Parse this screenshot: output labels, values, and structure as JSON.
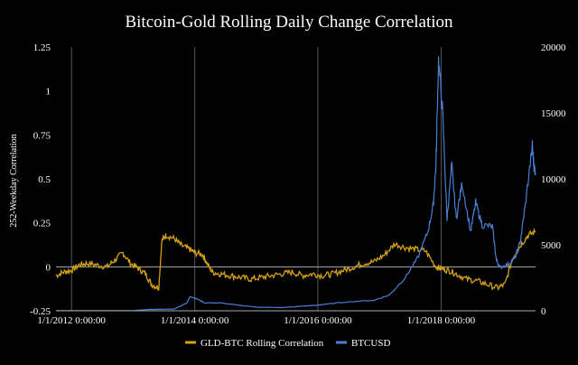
{
  "chart_data": {
    "type": "line",
    "title": "Bitcoin-Gold Rolling Daily Change Correlation",
    "ylabel_left": "252-Weekday Correlation",
    "ylabel_right": "",
    "xlabel": "",
    "x_range": [
      "2011-10-01",
      "2019-07-15"
    ],
    "ylim_left": [
      -0.25,
      1.25
    ],
    "ylim_right": [
      0,
      20000
    ],
    "yticks_left": [
      "-0.25",
      "0",
      "0.25",
      "0.5",
      "0.75",
      "1",
      "1.25"
    ],
    "yticks_right": [
      "0",
      "5000",
      "10000",
      "15000",
      "20000"
    ],
    "xticks": [
      {
        "date": "2012-01-01",
        "label": "1/1/2012 0:00:00"
      },
      {
        "date": "2014-01-01",
        "label": "1/1/2014 0:00:00"
      },
      {
        "date": "2016-01-01",
        "label": "1/1/2016 0:00:00"
      },
      {
        "date": "2018-01-01",
        "label": "1/1/2018 0:00:00"
      }
    ],
    "grid": "vertical",
    "legend_position": "bottom",
    "series": [
      {
        "name": "GLD-BTC Rolling Correlation",
        "color": "#d4a017",
        "axis": "left",
        "points": [
          [
            "2011-10-01",
            -0.05
          ],
          [
            "2011-11-15",
            -0.03
          ],
          [
            "2012-01-01",
            -0.02
          ],
          [
            "2012-02-15",
            0.01
          ],
          [
            "2012-04-01",
            0.02
          ],
          [
            "2012-06-01",
            0.01
          ],
          [
            "2012-08-01",
            0.0
          ],
          [
            "2012-09-15",
            0.04
          ],
          [
            "2012-11-01",
            0.08
          ],
          [
            "2012-12-15",
            0.02
          ],
          [
            "2013-02-01",
            -0.01
          ],
          [
            "2013-03-15",
            -0.04
          ],
          [
            "2013-04-20",
            -0.1
          ],
          [
            "2013-06-01",
            -0.12
          ],
          [
            "2013-06-20",
            0.15
          ],
          [
            "2013-07-15",
            0.18
          ],
          [
            "2013-09-01",
            0.16
          ],
          [
            "2013-10-15",
            0.12
          ],
          [
            "2013-12-01",
            0.1
          ],
          [
            "2014-01-01",
            0.08
          ],
          [
            "2014-02-15",
            0.07
          ],
          [
            "2014-03-15",
            0.02
          ],
          [
            "2014-04-15",
            -0.03
          ],
          [
            "2014-06-01",
            -0.04
          ],
          [
            "2014-08-01",
            -0.05
          ],
          [
            "2014-10-01",
            -0.06
          ],
          [
            "2014-12-01",
            -0.07
          ],
          [
            "2015-02-01",
            -0.06
          ],
          [
            "2015-04-01",
            -0.05
          ],
          [
            "2015-06-01",
            -0.04
          ],
          [
            "2015-08-01",
            -0.03
          ],
          [
            "2015-10-01",
            -0.05
          ],
          [
            "2015-12-01",
            -0.04
          ],
          [
            "2016-02-01",
            -0.05
          ],
          [
            "2016-04-01",
            -0.04
          ],
          [
            "2016-06-01",
            -0.02
          ],
          [
            "2016-08-01",
            0.0
          ],
          [
            "2016-10-01",
            0.02
          ],
          [
            "2016-12-01",
            0.03
          ],
          [
            "2017-02-01",
            0.07
          ],
          [
            "2017-04-01",
            0.13
          ],
          [
            "2017-06-01",
            0.11
          ],
          [
            "2017-08-01",
            0.1
          ],
          [
            "2017-10-01",
            0.09
          ],
          [
            "2017-12-01",
            0.0
          ],
          [
            "2018-01-01",
            -0.01
          ],
          [
            "2018-02-15",
            -0.02
          ],
          [
            "2018-04-01",
            -0.04
          ],
          [
            "2018-06-01",
            -0.07
          ],
          [
            "2018-08-01",
            -0.08
          ],
          [
            "2018-10-01",
            -0.1
          ],
          [
            "2018-12-01",
            -0.12
          ],
          [
            "2019-01-15",
            -0.1
          ],
          [
            "2019-03-01",
            0.05
          ],
          [
            "2019-04-15",
            0.12
          ],
          [
            "2019-06-01",
            0.18
          ],
          [
            "2019-07-15",
            0.2
          ]
        ]
      },
      {
        "name": "BTCUSD",
        "color": "#4a7fd4",
        "axis": "right",
        "points": [
          [
            "2011-10-01",
            5
          ],
          [
            "2012-06-01",
            8
          ],
          [
            "2013-01-01",
            15
          ],
          [
            "2013-04-01",
            100
          ],
          [
            "2013-09-01",
            130
          ],
          [
            "2013-11-15",
            600
          ],
          [
            "2013-12-05",
            1100
          ],
          [
            "2014-01-15",
            900
          ],
          [
            "2014-03-01",
            600
          ],
          [
            "2014-06-01",
            600
          ],
          [
            "2014-09-01",
            450
          ],
          [
            "2015-01-01",
            280
          ],
          [
            "2015-06-01",
            240
          ],
          [
            "2015-11-01",
            380
          ],
          [
            "2016-01-01",
            430
          ],
          [
            "2016-06-01",
            650
          ],
          [
            "2016-12-01",
            800
          ],
          [
            "2017-03-01",
            1200
          ],
          [
            "2017-06-01",
            2500
          ],
          [
            "2017-08-15",
            4000
          ],
          [
            "2017-10-15",
            6000
          ],
          [
            "2017-11-15",
            8000
          ],
          [
            "2017-12-01",
            11000
          ],
          [
            "2017-12-17",
            19000
          ],
          [
            "2018-01-10",
            15000
          ],
          [
            "2018-02-05",
            7000
          ],
          [
            "2018-03-05",
            11000
          ],
          [
            "2018-04-01",
            7000
          ],
          [
            "2018-05-05",
            9700
          ],
          [
            "2018-06-25",
            6000
          ],
          [
            "2018-07-25",
            8200
          ],
          [
            "2018-09-01",
            6500
          ],
          [
            "2018-11-01",
            6400
          ],
          [
            "2018-11-25",
            3800
          ],
          [
            "2018-12-15",
            3300
          ],
          [
            "2019-02-01",
            3500
          ],
          [
            "2019-03-15",
            4000
          ],
          [
            "2019-04-15",
            5200
          ],
          [
            "2019-05-15",
            8000
          ],
          [
            "2019-06-26",
            12500
          ],
          [
            "2019-07-05",
            11000
          ],
          [
            "2019-07-15",
            10500
          ]
        ]
      }
    ]
  }
}
